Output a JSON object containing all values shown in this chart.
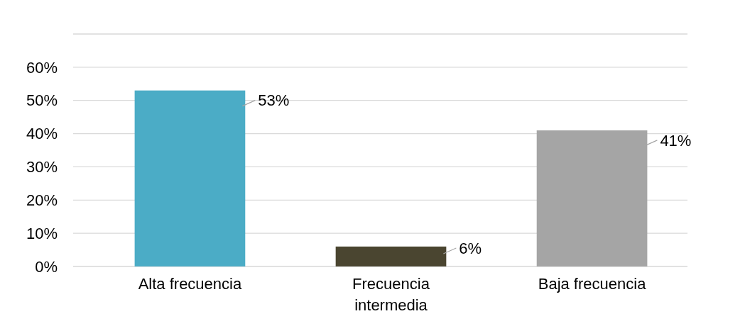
{
  "chart_data": {
    "type": "bar",
    "categories": [
      "Alta frecuencia",
      "Frecuencia intermedia",
      "Baja frecuencia"
    ],
    "values": [
      53,
      6,
      41
    ],
    "colors": [
      "#4bacc6",
      "#4a4530",
      "#a5a5a5"
    ],
    "ylim": [
      0,
      70
    ],
    "yticks": [
      {
        "value": 0,
        "label": "0%"
      },
      {
        "value": 10,
        "label": "10%"
      },
      {
        "value": 20,
        "label": "20%"
      },
      {
        "value": 30,
        "label": "30%"
      },
      {
        "value": 40,
        "label": "40%"
      },
      {
        "value": 50,
        "label": "50%"
      },
      {
        "value": 60,
        "label": "60%"
      },
      {
        "value": 70,
        "label": null
      }
    ],
    "value_labels": [
      "53%",
      "6%",
      "41%"
    ],
    "grid": true
  }
}
